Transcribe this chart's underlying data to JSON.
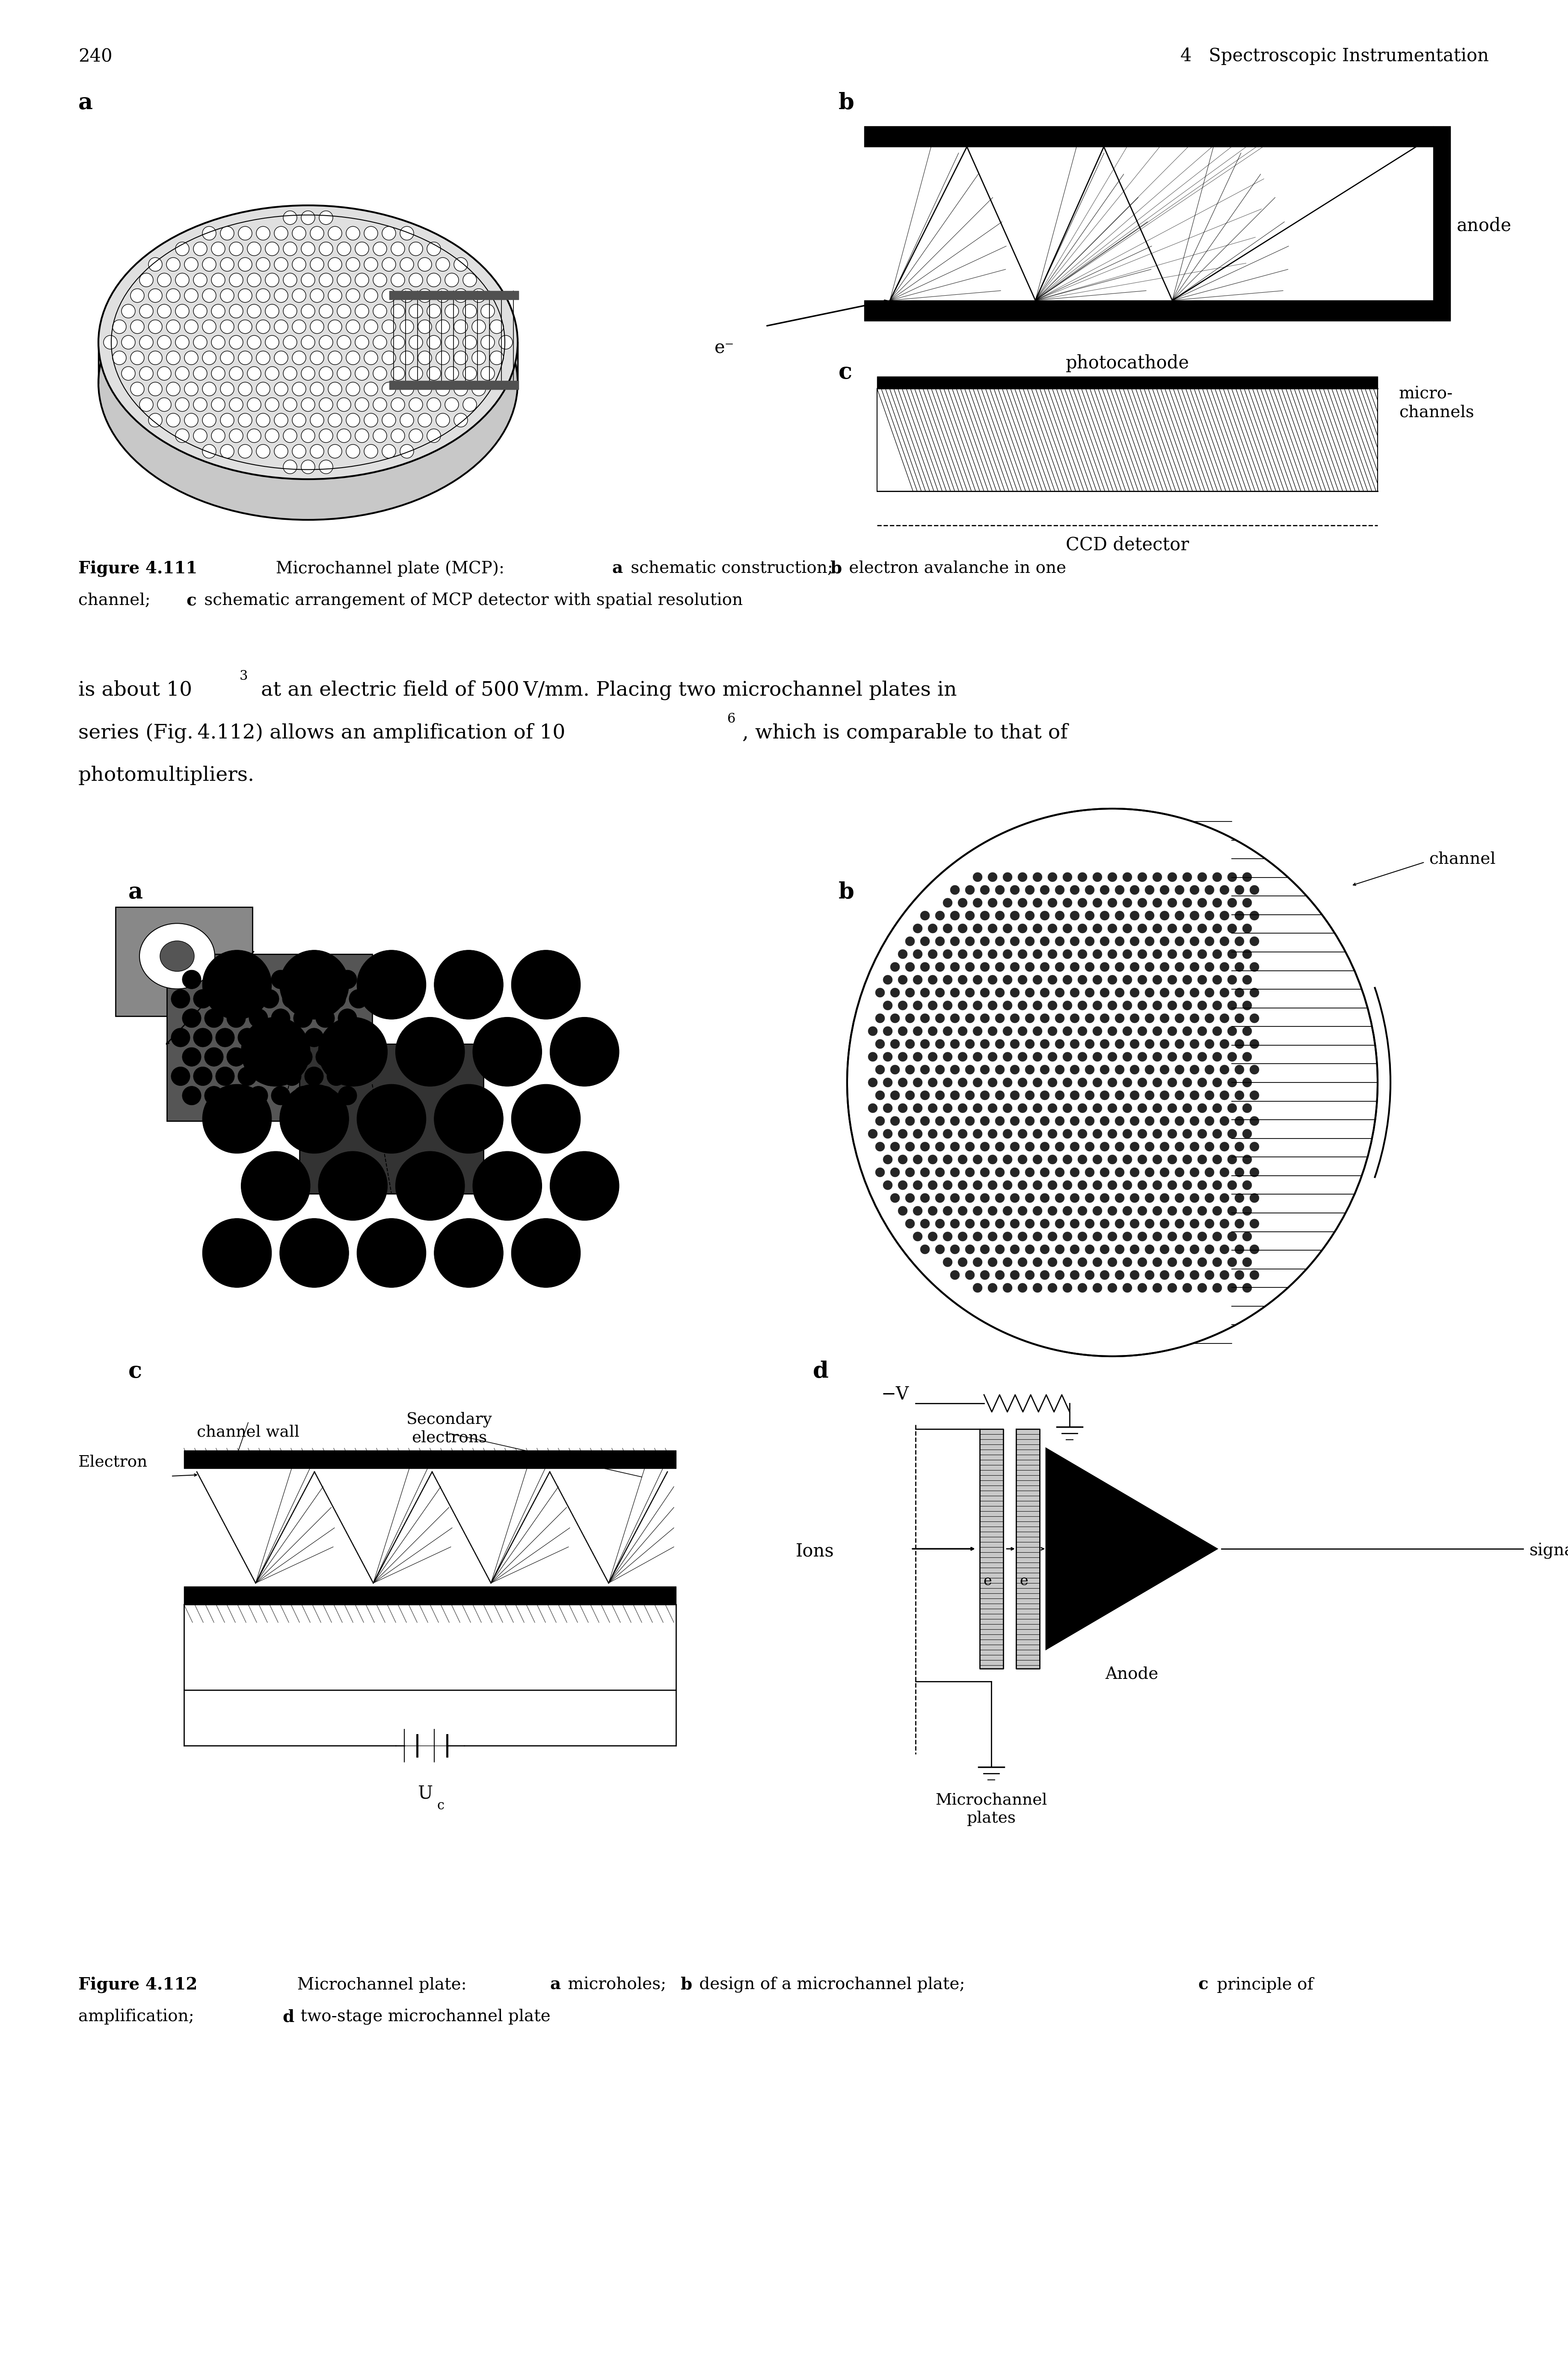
{
  "page_number": "240",
  "header_right": "4   Spectroscopic Instrumentation",
  "bg_color": "#ffffff",
  "text_color": "#000000",
  "body_line1a": "is about 10",
  "body_exp1": "3",
  "body_line1b": " at an electric field of 500 V/mm. Placing two microchannel plates in",
  "body_line2a": "series (Fig. 4.112) allows an amplification of 10",
  "body_exp2": "6",
  "body_line2b": ", which is comparable to that of",
  "body_line3": "photomultipliers."
}
